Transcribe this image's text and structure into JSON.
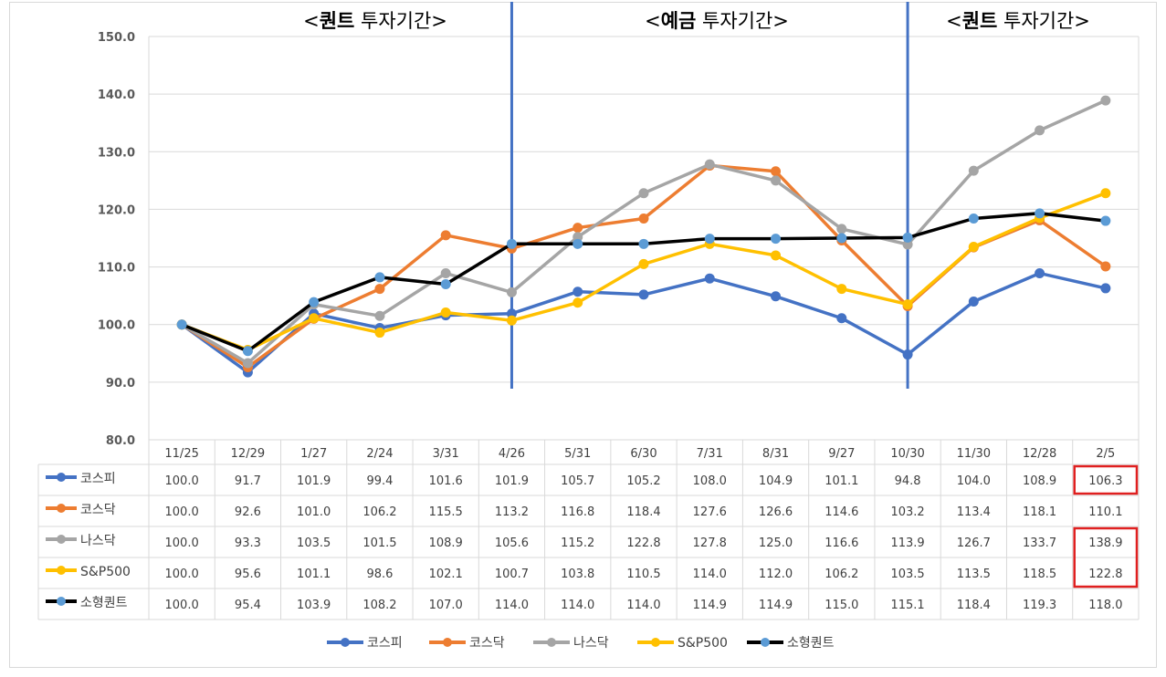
{
  "periods": [
    {
      "open": "<",
      "bold": "퀀트",
      "rest": " 투자기간>"
    },
    {
      "open": "<",
      "bold": "예금",
      "rest": " 투자기간>"
    },
    {
      "open": "<",
      "bold": "퀀트",
      "rest": " 투자기간>"
    }
  ],
  "chart_data": {
    "type": "line",
    "title": "",
    "xlabel": "",
    "ylabel": "",
    "ylim": [
      80,
      150
    ],
    "yticks": [
      "80.0",
      "90.0",
      "100.0",
      "110.0",
      "120.0",
      "130.0",
      "140.0",
      "150.0"
    ],
    "categories": [
      "11/25",
      "12/29",
      "1/27",
      "2/24",
      "3/31",
      "4/26",
      "5/31",
      "6/30",
      "7/31",
      "8/31",
      "9/27",
      "10/30",
      "11/30",
      "12/28",
      "2/5"
    ],
    "grid": true,
    "legend": "bottom",
    "data_table": true,
    "period_dividers_after": [
      "4/26",
      "10/30"
    ],
    "highlighted_cells": [
      {
        "series": "코스피",
        "category": "2/5"
      },
      {
        "series": "나스닥",
        "category": "2/5"
      },
      {
        "series": "S&P500",
        "category": "2/5"
      }
    ],
    "series": [
      {
        "name": "코스피",
        "color": "#4472C4",
        "marker": "#4472C4",
        "values": [
          100.0,
          91.7,
          101.9,
          99.4,
          101.6,
          101.9,
          105.7,
          105.2,
          108.0,
          104.9,
          101.1,
          94.8,
          104.0,
          108.9,
          106.3
        ]
      },
      {
        "name": "코스닥",
        "color": "#ED7D31",
        "marker": "#ED7D31",
        "values": [
          100.0,
          92.6,
          101.0,
          106.2,
          115.5,
          113.2,
          116.8,
          118.4,
          127.6,
          126.6,
          114.6,
          103.2,
          113.4,
          118.1,
          110.1
        ]
      },
      {
        "name": "나스닥",
        "color": "#A5A5A5",
        "marker": "#A5A5A5",
        "values": [
          100.0,
          93.3,
          103.5,
          101.5,
          108.9,
          105.6,
          115.2,
          122.8,
          127.8,
          125.0,
          116.6,
          113.9,
          126.7,
          133.7,
          138.9
        ]
      },
      {
        "name": "S&P500",
        "color": "#FFC000",
        "marker": "#FFC000",
        "values": [
          100.0,
          95.6,
          101.1,
          98.6,
          102.1,
          100.7,
          103.8,
          110.5,
          114.0,
          112.0,
          106.2,
          103.5,
          113.5,
          118.5,
          122.8
        ]
      },
      {
        "name": "소형퀀트",
        "color": "#000000",
        "marker": "#5B9BD5",
        "values": [
          100.0,
          95.4,
          103.9,
          108.2,
          107.0,
          114.0,
          114.0,
          114.0,
          114.9,
          114.9,
          115.0,
          115.1,
          118.4,
          119.3,
          118.0
        ]
      }
    ]
  }
}
